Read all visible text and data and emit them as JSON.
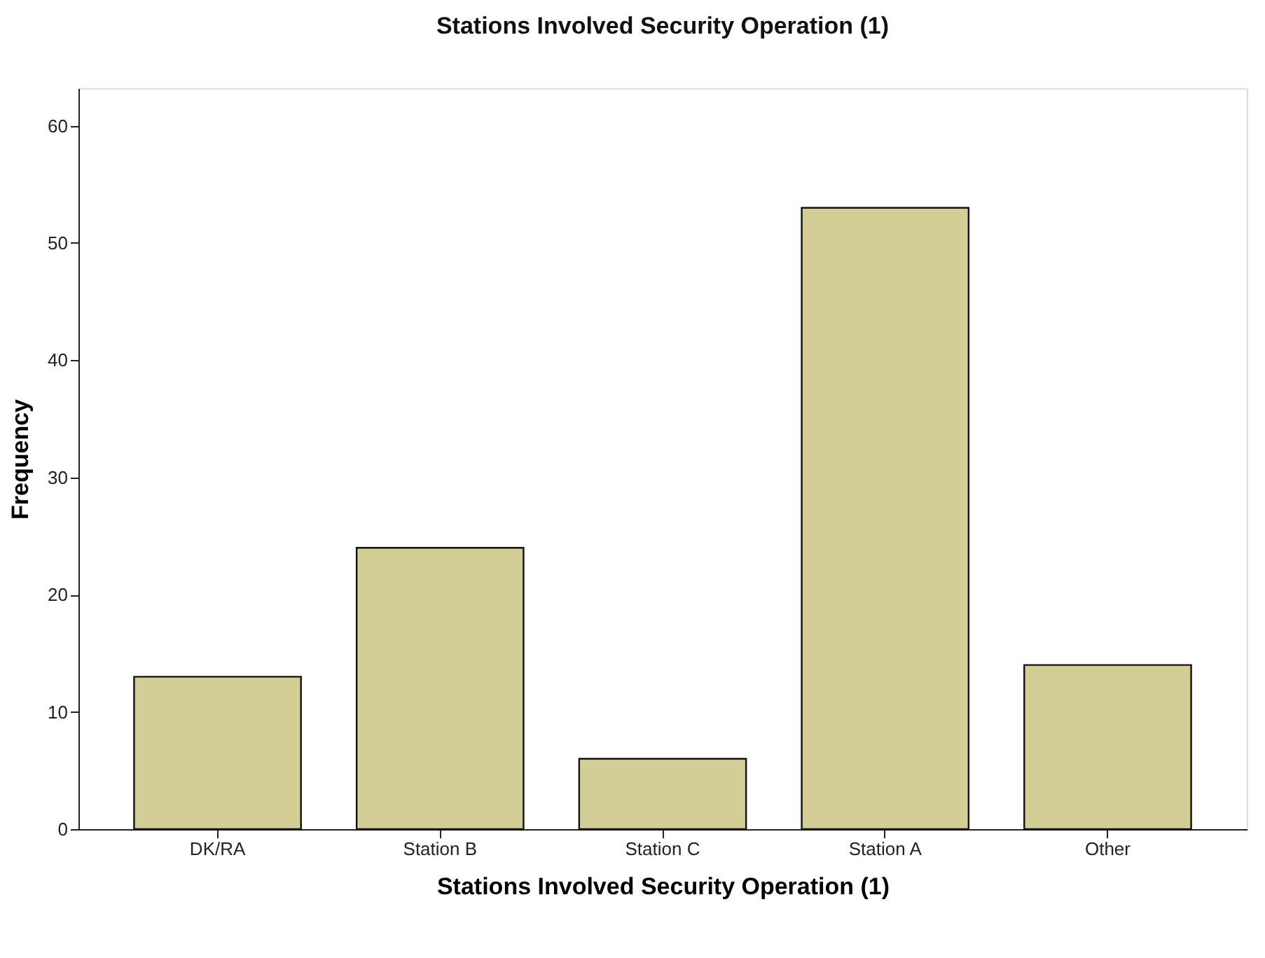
{
  "chart_data": {
    "type": "bar",
    "title": "Stations Involved Security Operation (1)",
    "xlabel": "Stations Involved Security Operation (1)",
    "ylabel": "Frequency",
    "categories": [
      "DK/RA",
      "Station B",
      "Station C",
      "Station A",
      "Other"
    ],
    "values": [
      13,
      24,
      6,
      53,
      14
    ],
    "color": "#d3cd96",
    "ylim": [
      0,
      63.2
    ],
    "yticks": [
      0,
      10,
      20,
      30,
      40,
      50,
      60
    ],
    "grid": false
  }
}
